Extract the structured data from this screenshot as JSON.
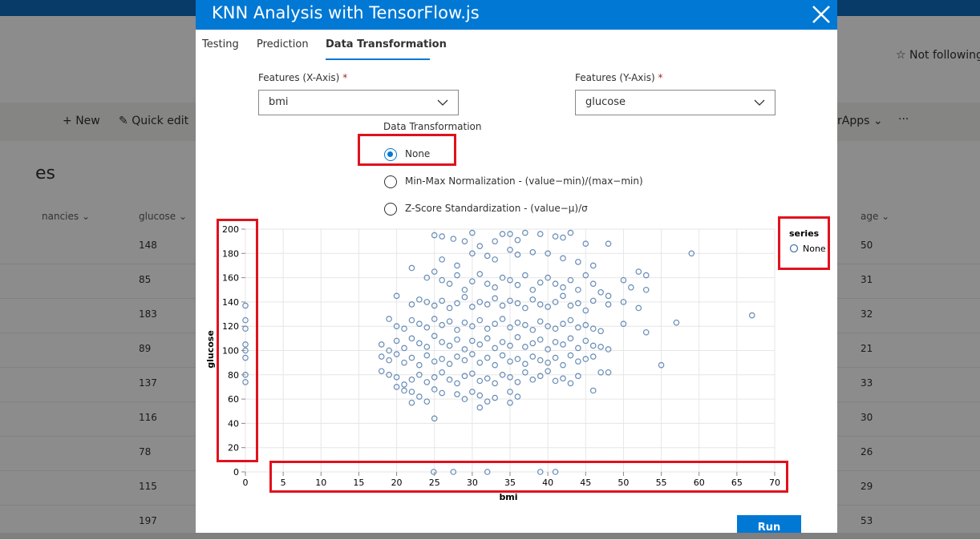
{
  "background": {
    "header_right": "Not following",
    "command_bar": {
      "new_label": "New",
      "quick_edit_label": "Quick edit",
      "apps_label": "rApps",
      "more_label": "···"
    },
    "list_title": "es",
    "columns": [
      "nancies",
      "glucose",
      "age"
    ],
    "glucose_values": [
      "148",
      "85",
      "183",
      "89",
      "137",
      "116",
      "78",
      "115",
      "197"
    ],
    "age_values": [
      "50",
      "31",
      "32",
      "21",
      "33",
      "30",
      "26",
      "29",
      "53"
    ]
  },
  "modal": {
    "title": "KNN Analysis with TensorFlow.js",
    "tabs": [
      {
        "label": "Testing"
      },
      {
        "label": "Prediction"
      },
      {
        "label": "Data Transformation",
        "active": true
      }
    ],
    "features_x": {
      "label": "Features (X-Axis)",
      "required_mark": "*",
      "value": "bmi"
    },
    "features_y": {
      "label": "Features (Y-Axis)",
      "required_mark": "*",
      "value": "glucose"
    },
    "transformation": {
      "label": "Data Transformation",
      "options": [
        {
          "label": "None",
          "checked": true
        },
        {
          "label": "Min-Max Normalization - (value−min)/(max−min)",
          "checked": false
        },
        {
          "label": "Z-Score Standardization - (value−μ)/σ",
          "checked": false
        }
      ]
    },
    "run_label": "Run",
    "accent_color": "#0078d4",
    "highlight_color": "#e0121d"
  },
  "chart_data": {
    "type": "scatter",
    "xlabel": "bmi",
    "ylabel": "glucose",
    "legend_title": "series",
    "series": [
      {
        "name": "None"
      }
    ],
    "x_ticks": [
      0,
      5,
      10,
      15,
      20,
      25,
      30,
      35,
      40,
      45,
      50,
      55,
      60,
      65,
      70
    ],
    "y_ticks": [
      0,
      20,
      40,
      60,
      80,
      100,
      120,
      140,
      160,
      180,
      200
    ],
    "xlim": [
      0,
      70
    ],
    "ylim": [
      0,
      200
    ],
    "grid": true,
    "legend_position": "right",
    "point_color": "#4c78a8",
    "points": [
      [
        0,
        137
      ],
      [
        0,
        125
      ],
      [
        0,
        118
      ],
      [
        0,
        105
      ],
      [
        0,
        100
      ],
      [
        0,
        94
      ],
      [
        0,
        80
      ],
      [
        0,
        74
      ],
      [
        24.9,
        0
      ],
      [
        27.5,
        0
      ],
      [
        32,
        0
      ],
      [
        39,
        0
      ],
      [
        41,
        0
      ],
      [
        25,
        195
      ],
      [
        26,
        194
      ],
      [
        27.5,
        192
      ],
      [
        29,
        190
      ],
      [
        30,
        197
      ],
      [
        31,
        186
      ],
      [
        33,
        190
      ],
      [
        34,
        196
      ],
      [
        35,
        196
      ],
      [
        36,
        191
      ],
      [
        37,
        197
      ],
      [
        39,
        196
      ],
      [
        41,
        194
      ],
      [
        42,
        193
      ],
      [
        43,
        197
      ],
      [
        45,
        188
      ],
      [
        48,
        188
      ],
      [
        59,
        180
      ],
      [
        26,
        175
      ],
      [
        28,
        170
      ],
      [
        30,
        180
      ],
      [
        32,
        178
      ],
      [
        33,
        175
      ],
      [
        35,
        183
      ],
      [
        36,
        179
      ],
      [
        38,
        181
      ],
      [
        40,
        180
      ],
      [
        42,
        176
      ],
      [
        44,
        173
      ],
      [
        46,
        170
      ],
      [
        52,
        165
      ],
      [
        53,
        162
      ],
      [
        22,
        168
      ],
      [
        24,
        160
      ],
      [
        25,
        165
      ],
      [
        26,
        158
      ],
      [
        27,
        155
      ],
      [
        28,
        162
      ],
      [
        29,
        150
      ],
      [
        30,
        157
      ],
      [
        31,
        163
      ],
      [
        32,
        155
      ],
      [
        33,
        152
      ],
      [
        34,
        160
      ],
      [
        35,
        158
      ],
      [
        36,
        154
      ],
      [
        37,
        162
      ],
      [
        38,
        150
      ],
      [
        39,
        156
      ],
      [
        40,
        160
      ],
      [
        41,
        155
      ],
      [
        42,
        152
      ],
      [
        43,
        158
      ],
      [
        44,
        150
      ],
      [
        45,
        162
      ],
      [
        46,
        155
      ],
      [
        47,
        148
      ],
      [
        48,
        145
      ],
      [
        50,
        158
      ],
      [
        51,
        152
      ],
      [
        53,
        150
      ],
      [
        20,
        145
      ],
      [
        22,
        138
      ],
      [
        23,
        142
      ],
      [
        24,
        140
      ],
      [
        25,
        137
      ],
      [
        26,
        141
      ],
      [
        27,
        135
      ],
      [
        28,
        139
      ],
      [
        29,
        144
      ],
      [
        30,
        136
      ],
      [
        31,
        140
      ],
      [
        32,
        138
      ],
      [
        33,
        143
      ],
      [
        34,
        137
      ],
      [
        35,
        141
      ],
      [
        36,
        139
      ],
      [
        37,
        135
      ],
      [
        38,
        142
      ],
      [
        39,
        138
      ],
      [
        40,
        136
      ],
      [
        41,
        140
      ],
      [
        42,
        145
      ],
      [
        43,
        137
      ],
      [
        44,
        139
      ],
      [
        45,
        133
      ],
      [
        46,
        141
      ],
      [
        48,
        138
      ],
      [
        50,
        140
      ],
      [
        52,
        135
      ],
      [
        57,
        123
      ],
      [
        67,
        129
      ],
      [
        19,
        126
      ],
      [
        20,
        120
      ],
      [
        21,
        118
      ],
      [
        22,
        125
      ],
      [
        23,
        122
      ],
      [
        24,
        119
      ],
      [
        25,
        126
      ],
      [
        26,
        121
      ],
      [
        27,
        124
      ],
      [
        28,
        117
      ],
      [
        29,
        123
      ],
      [
        30,
        120
      ],
      [
        31,
        125
      ],
      [
        32,
        118
      ],
      [
        33,
        122
      ],
      [
        34,
        126
      ],
      [
        35,
        119
      ],
      [
        36,
        123
      ],
      [
        37,
        121
      ],
      [
        38,
        117
      ],
      [
        39,
        124
      ],
      [
        40,
        120
      ],
      [
        41,
        118
      ],
      [
        42,
        122
      ],
      [
        43,
        125
      ],
      [
        44,
        119
      ],
      [
        45,
        121
      ],
      [
        46,
        118
      ],
      [
        47,
        116
      ],
      [
        50,
        122
      ],
      [
        53,
        115
      ],
      [
        18,
        105
      ],
      [
        19,
        100
      ],
      [
        20,
        108
      ],
      [
        21,
        102
      ],
      [
        22,
        110
      ],
      [
        23,
        106
      ],
      [
        24,
        103
      ],
      [
        25,
        112
      ],
      [
        26,
        107
      ],
      [
        27,
        104
      ],
      [
        28,
        109
      ],
      [
        29,
        101
      ],
      [
        30,
        108
      ],
      [
        31,
        105
      ],
      [
        32,
        110
      ],
      [
        33,
        102
      ],
      [
        34,
        107
      ],
      [
        35,
        104
      ],
      [
        36,
        111
      ],
      [
        37,
        103
      ],
      [
        38,
        106
      ],
      [
        39,
        109
      ],
      [
        40,
        101
      ],
      [
        41,
        107
      ],
      [
        42,
        105
      ],
      [
        43,
        110
      ],
      [
        44,
        102
      ],
      [
        45,
        108
      ],
      [
        46,
        104
      ],
      [
        47,
        103
      ],
      [
        48,
        101
      ],
      [
        18,
        95
      ],
      [
        19,
        92
      ],
      [
        20,
        97
      ],
      [
        21,
        90
      ],
      [
        22,
        94
      ],
      [
        23,
        88
      ],
      [
        24,
        96
      ],
      [
        25,
        91
      ],
      [
        26,
        93
      ],
      [
        27,
        89
      ],
      [
        28,
        95
      ],
      [
        29,
        92
      ],
      [
        30,
        97
      ],
      [
        31,
        90
      ],
      [
        32,
        94
      ],
      [
        33,
        88
      ],
      [
        34,
        96
      ],
      [
        35,
        91
      ],
      [
        36,
        93
      ],
      [
        37,
        89
      ],
      [
        38,
        95
      ],
      [
        39,
        92
      ],
      [
        40,
        90
      ],
      [
        41,
        94
      ],
      [
        42,
        88
      ],
      [
        43,
        96
      ],
      [
        44,
        91
      ],
      [
        45,
        93
      ],
      [
        46,
        95
      ],
      [
        47,
        82
      ],
      [
        48,
        82
      ],
      [
        18,
        83
      ],
      [
        19,
        80
      ],
      [
        20,
        78
      ],
      [
        21,
        72
      ],
      [
        22,
        76
      ],
      [
        23,
        80
      ],
      [
        24,
        74
      ],
      [
        25,
        78
      ],
      [
        26,
        82
      ],
      [
        27,
        76
      ],
      [
        28,
        73
      ],
      [
        29,
        79
      ],
      [
        30,
        81
      ],
      [
        31,
        75
      ],
      [
        32,
        77
      ],
      [
        33,
        73
      ],
      [
        34,
        80
      ],
      [
        35,
        78
      ],
      [
        36,
        74
      ],
      [
        37,
        82
      ],
      [
        38,
        76
      ],
      [
        39,
        79
      ],
      [
        40,
        83
      ],
      [
        41,
        75
      ],
      [
        42,
        77
      ],
      [
        43,
        73
      ],
      [
        44,
        79
      ],
      [
        55,
        88
      ],
      [
        20,
        70
      ],
      [
        21,
        67
      ],
      [
        22,
        66
      ],
      [
        23,
        62
      ],
      [
        25,
        68
      ],
      [
        26,
        65
      ],
      [
        28,
        64
      ],
      [
        29,
        60
      ],
      [
        30,
        66
      ],
      [
        31,
        63
      ],
      [
        32,
        58
      ],
      [
        33,
        61
      ],
      [
        35,
        66
      ],
      [
        36,
        62
      ],
      [
        46,
        67
      ],
      [
        22,
        57
      ],
      [
        25,
        44
      ],
      [
        24,
        58
      ],
      [
        31,
        53
      ],
      [
        35,
        57
      ]
    ]
  }
}
